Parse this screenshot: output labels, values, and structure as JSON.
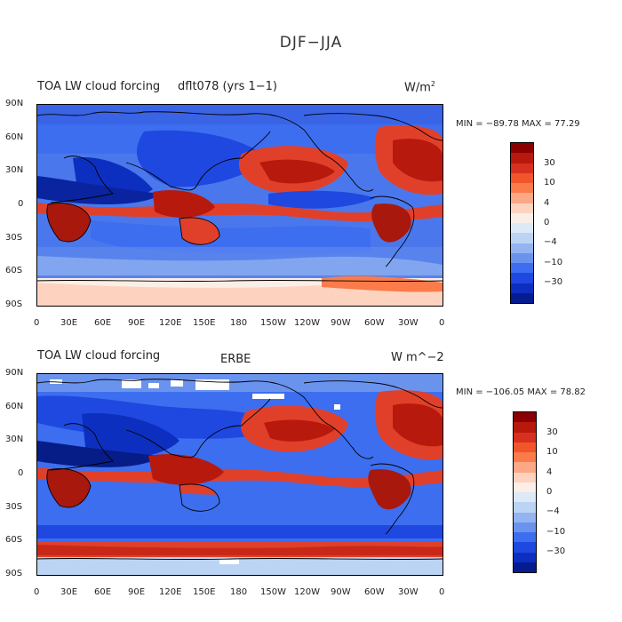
{
  "title": "DJF−JJA",
  "panels": [
    {
      "left_label": "TOA LW cloud forcing",
      "center_label": "dflt078 (yrs 1−1)",
      "units": "W/m",
      "units_sup": "2",
      "min_max": "MIN = −89.78  MAX =   77.29",
      "lat_ticks": [
        "90N",
        "60N",
        "30N",
        "0",
        "30S",
        "60S",
        "90S"
      ],
      "lon_ticks": [
        "0",
        "30E",
        "60E",
        "90E",
        "120E",
        "150E",
        "180",
        "150W",
        "120W",
        "90W",
        "60W",
        "30W",
        "0"
      ],
      "colorbar_labels": [
        "30",
        "10",
        "4",
        "0",
        "−4",
        "−10",
        "−30"
      ]
    },
    {
      "left_label": "TOA LW cloud forcing",
      "center_label": "ERBE",
      "units": "W m^−2",
      "units_sup": "",
      "min_max": "MIN = −106.05  MAX =   78.82",
      "lat_ticks": [
        "90N",
        "60N",
        "30N",
        "0",
        "30S",
        "60S",
        "90S"
      ],
      "lon_ticks": [
        "0",
        "30E",
        "60E",
        "90E",
        "120E",
        "150E",
        "180",
        "150W",
        "120W",
        "90W",
        "60W",
        "30W",
        "0"
      ],
      "colorbar_labels": [
        "30",
        "10",
        "4",
        "0",
        "−4",
        "−10",
        "−30"
      ]
    }
  ],
  "colorbar_colors": [
    "#8b0000",
    "#b8190d",
    "#d7301f",
    "#f0562a",
    "#fb7b4a",
    "#fca786",
    "#fdd3bf",
    "#fbeee6",
    "#dde9f7",
    "#bcd4f4",
    "#93b4f0",
    "#6a93ee",
    "#3d6ef0",
    "#1f48e0",
    "#0d2fc0",
    "#051b90"
  ],
  "palette": {
    "deep_red": "#a8180c",
    "red": "#e0402a",
    "light_red": "#f9a68a",
    "white": "#fbf5f0",
    "light_blue": "#b9cdf3",
    "blue": "#4a78ec",
    "deep_blue": "#0f2fb8",
    "navy": "#061c86"
  }
}
